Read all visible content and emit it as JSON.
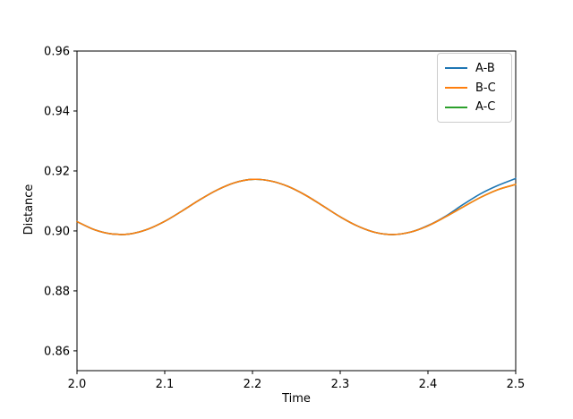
{
  "figure": {
    "background": "#ffffff"
  },
  "chart_data": {
    "type": "line",
    "title": "",
    "xlabel": "Time",
    "ylabel": "Distance",
    "xlim": [
      2.0,
      2.5
    ],
    "ylim": [
      0.8534,
      0.96
    ],
    "grid": false,
    "xticks": [
      2.0,
      2.1,
      2.2,
      2.3,
      2.4,
      2.5
    ],
    "xtick_labels": [
      "2.0",
      "2.1",
      "2.2",
      "2.3",
      "2.4",
      "2.5"
    ],
    "yticks": [
      0.86,
      0.88,
      0.9,
      0.92,
      0.94,
      0.96
    ],
    "ytick_labels": [
      "0.86",
      "0.88",
      "0.90",
      "0.92",
      "0.94",
      "0.96"
    ],
    "legend": {
      "position": "upper right",
      "border_color": "#cccccc"
    },
    "x": [
      2.0,
      2.02,
      2.04,
      2.06,
      2.08,
      2.1,
      2.12,
      2.14,
      2.16,
      2.18,
      2.2,
      2.22,
      2.24,
      2.26,
      2.28,
      2.3,
      2.32,
      2.34,
      2.36,
      2.38,
      2.4,
      2.42,
      2.44,
      2.46,
      2.48,
      2.5
    ],
    "series": [
      {
        "name": "A-B",
        "color": "#1f77b4",
        "values": [
          0.9031,
          0.9004,
          0.899,
          0.899,
          0.9005,
          0.9032,
          0.9067,
          0.9104,
          0.9137,
          0.9161,
          0.9172,
          0.9167,
          0.9149,
          0.912,
          0.9084,
          0.9047,
          0.9016,
          0.8995,
          0.8988,
          0.8996,
          0.9018,
          0.9049,
          0.9088,
          0.9124,
          0.9152,
          0.9175
        ]
      },
      {
        "name": "B-C",
        "color": "#ff7f0e",
        "values": [
          0.9031,
          0.9004,
          0.899,
          0.899,
          0.9005,
          0.9032,
          0.9067,
          0.9104,
          0.9137,
          0.9161,
          0.9172,
          0.9167,
          0.9149,
          0.912,
          0.9084,
          0.9047,
          0.9016,
          0.8995,
          0.8988,
          0.8996,
          0.9017,
          0.9047,
          0.908,
          0.9112,
          0.9138,
          0.9155
        ]
      },
      {
        "name": "A-C",
        "color": "#2ca02c",
        "values": [
          0.9031,
          0.9004,
          0.899,
          0.899,
          0.9005,
          0.9032,
          0.9067,
          0.9104,
          0.9137,
          0.9161,
          0.9172,
          0.9167,
          0.9149,
          0.912,
          0.9084,
          0.9047,
          0.9016,
          0.8995,
          0.8988,
          0.8996,
          0.9017,
          0.9047,
          0.908,
          0.9112,
          0.9138,
          0.9155
        ]
      }
    ],
    "draw_order": [
      2,
      0,
      1
    ]
  }
}
